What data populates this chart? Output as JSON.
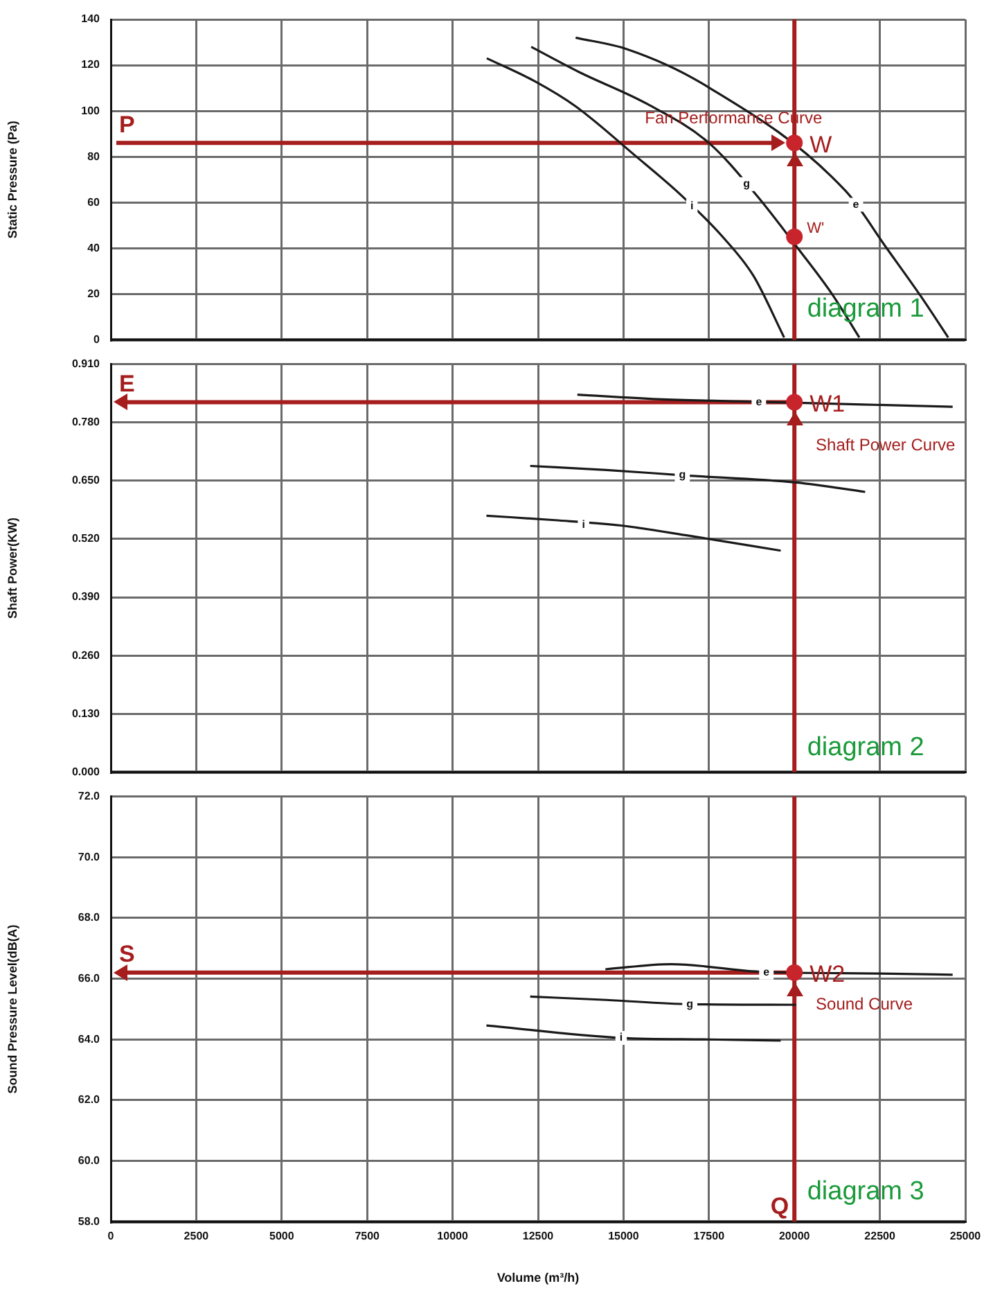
{
  "chart_data": [
    {
      "type": "line",
      "ylabel": "Static Pressure (Pa)",
      "xlim": [
        0,
        25000
      ],
      "xticks": [
        0,
        2500,
        5000,
        7500,
        10000,
        12500,
        15000,
        17500,
        20000,
        22500,
        25000
      ],
      "ylim": [
        0,
        140
      ],
      "yticks": [
        0,
        20,
        40,
        60,
        80,
        100,
        120,
        140
      ],
      "grid": true,
      "tick_labels": "y",
      "marker": "none",
      "line_style": "solid",
      "series": [
        {
          "color": "#1a1a1a",
          "x": [
            11000,
            12400,
            13600,
            15300,
            16700,
            17900,
            18800,
            19700
          ],
          "values": [
            123,
            113,
            102,
            81,
            63,
            45,
            28,
            1
          ]
        },
        {
          "color": "#1a1a1a",
          "x": [
            12300,
            13700,
            15700,
            17500,
            18900,
            20100,
            21100,
            21900
          ],
          "values": [
            128,
            117,
            103,
            86,
            63,
            40,
            20,
            1
          ]
        },
        {
          "color": "#1a1a1a",
          "x": [
            13600,
            15100,
            17300,
            21500,
            22700,
            23700,
            24500
          ],
          "values": [
            132,
            127,
            112,
            65,
            40,
            19,
            1
          ]
        },
        {
          "type": "scatter",
          "marker": "circle",
          "color": "#c8242b",
          "x": [
            20000,
            20000
          ],
          "values": [
            86,
            45
          ]
        }
      ],
      "ref_lines": [
        {
          "axis": "y",
          "value": 86,
          "label": "P",
          "color": "#a51d1d"
        },
        {
          "axis": "x",
          "value": 20000,
          "color": "#a51d1d"
        }
      ],
      "annotations": [
        {
          "text": "i",
          "x": 17000,
          "y": 58.5
        },
        {
          "text": "g",
          "x": 18600,
          "y": 68
        },
        {
          "text": "e",
          "x": 21800,
          "y": 59
        },
        "Fan Performance Curve",
        {
          "text": "W",
          "x": 20000,
          "y": 86
        },
        {
          "text": "W'",
          "x": 20000,
          "y": 45
        },
        "diagram 1"
      ]
    },
    {
      "type": "line",
      "ylabel": "Shaft Power(KW)",
      "xlim": [
        0,
        25000
      ],
      "xticks": [
        0,
        2500,
        5000,
        7500,
        10000,
        12500,
        15000,
        17500,
        20000,
        22500,
        25000
      ],
      "ylim": [
        0,
        0.91
      ],
      "yticks": [
        {
          "value": 0,
          "label": "0.000"
        },
        {
          "value": 0.13,
          "label": "0.130"
        },
        {
          "value": 0.26,
          "label": "0.260"
        },
        {
          "value": 0.39,
          "label": "0.390"
        },
        {
          "value": 0.52,
          "label": "0.520"
        },
        {
          "value": 0.65,
          "label": "0.650"
        },
        {
          "value": 0.78,
          "label": "0.780"
        },
        {
          "value": 0.91,
          "label": "0.910"
        }
      ],
      "grid": true,
      "tick_labels": "y",
      "marker": "none",
      "line_style": "solid",
      "series": [
        {
          "color": "#1a1a1a",
          "x": [
            13650,
            16000,
            18960,
            22000,
            24630
          ],
          "values": [
            0.842,
            0.832,
            0.826,
            0.82,
            0.815
          ]
        },
        {
          "color": "#1a1a1a",
          "x": [
            12270,
            14500,
            16760,
            20050,
            22070
          ],
          "values": [
            0.683,
            0.674,
            0.662,
            0.646,
            0.625
          ]
        },
        {
          "color": "#1a1a1a",
          "x": [
            10990,
            13000,
            14930,
            16940,
            19600
          ],
          "values": [
            0.572,
            0.562,
            0.55,
            0.527,
            0.494
          ]
        },
        {
          "type": "scatter",
          "marker": "circle",
          "color": "#c8242b",
          "x": [
            20000
          ],
          "values": [
            0.825
          ]
        }
      ],
      "ref_lines": [
        {
          "axis": "y",
          "value": 0.825,
          "label": "E",
          "color": "#a51d1d"
        },
        {
          "axis": "x",
          "value": 20000,
          "color": "#a51d1d"
        }
      ],
      "annotations": [
        {
          "text": "e",
          "x": 18960,
          "y": 0.825
        },
        {
          "text": "g",
          "x": 16720,
          "y": 0.663
        },
        {
          "text": "i",
          "x": 13830,
          "y": 0.552
        },
        {
          "text": "W1",
          "x": 20000,
          "y": 0.825
        },
        "Shaft Power Curve",
        "diagram 2"
      ]
    },
    {
      "type": "line",
      "xlabel": "Volume (m³/h)",
      "ylabel": "Sound Pressure Level(dB(A)",
      "xlim": [
        0,
        25000
      ],
      "xticks": [
        0,
        2500,
        5000,
        7500,
        10000,
        12500,
        15000,
        17500,
        20000,
        22500,
        25000
      ],
      "ylim": [
        58,
        72
      ],
      "yticks": [
        {
          "value": 58,
          "label": "58.0"
        },
        {
          "value": 60,
          "label": "60.0"
        },
        {
          "value": 62,
          "label": "62.0"
        },
        {
          "value": 64,
          "label": "64.0"
        },
        {
          "value": 66,
          "label": "66.0"
        },
        {
          "value": 68,
          "label": "68.0"
        },
        {
          "value": 70,
          "label": "70.0"
        },
        {
          "value": 72,
          "label": "72.0"
        }
      ],
      "grid": true,
      "marker": "none",
      "line_style": "solid",
      "series": [
        {
          "color": "#1a1a1a",
          "x": [
            14470,
            16390,
            18960,
            22500,
            24630
          ],
          "values": [
            66.31,
            66.48,
            66.23,
            66.17,
            66.13
          ]
        },
        {
          "color": "#1a1a1a",
          "x": [
            12270,
            14500,
            16940,
            20050
          ],
          "values": [
            65.41,
            65.3,
            65.16,
            65.14
          ]
        },
        {
          "color": "#1a1a1a",
          "x": [
            10990,
            14930,
            17500,
            19600
          ],
          "values": [
            64.46,
            64.05,
            64.0,
            63.96
          ]
        },
        {
          "type": "scatter",
          "marker": "circle",
          "color": "#c8242b",
          "x": [
            20000
          ],
          "values": [
            66.2
          ]
        }
      ],
      "ref_lines": [
        {
          "axis": "y",
          "value": 66.2,
          "label": "S",
          "color": "#a51d1d"
        },
        {
          "axis": "x",
          "value": 20000,
          "label": "Q",
          "color": "#a51d1d"
        }
      ],
      "annotations": [
        {
          "text": "e",
          "x": 19180,
          "y": 66.2
        },
        {
          "text": "g",
          "x": 16940,
          "y": 65.16
        },
        {
          "text": "i",
          "x": 14930,
          "y": 64.05
        },
        {
          "text": "W2",
          "x": 20000,
          "y": 66.2
        },
        "Sound Curve",
        "diagram 3"
      ]
    }
  ]
}
